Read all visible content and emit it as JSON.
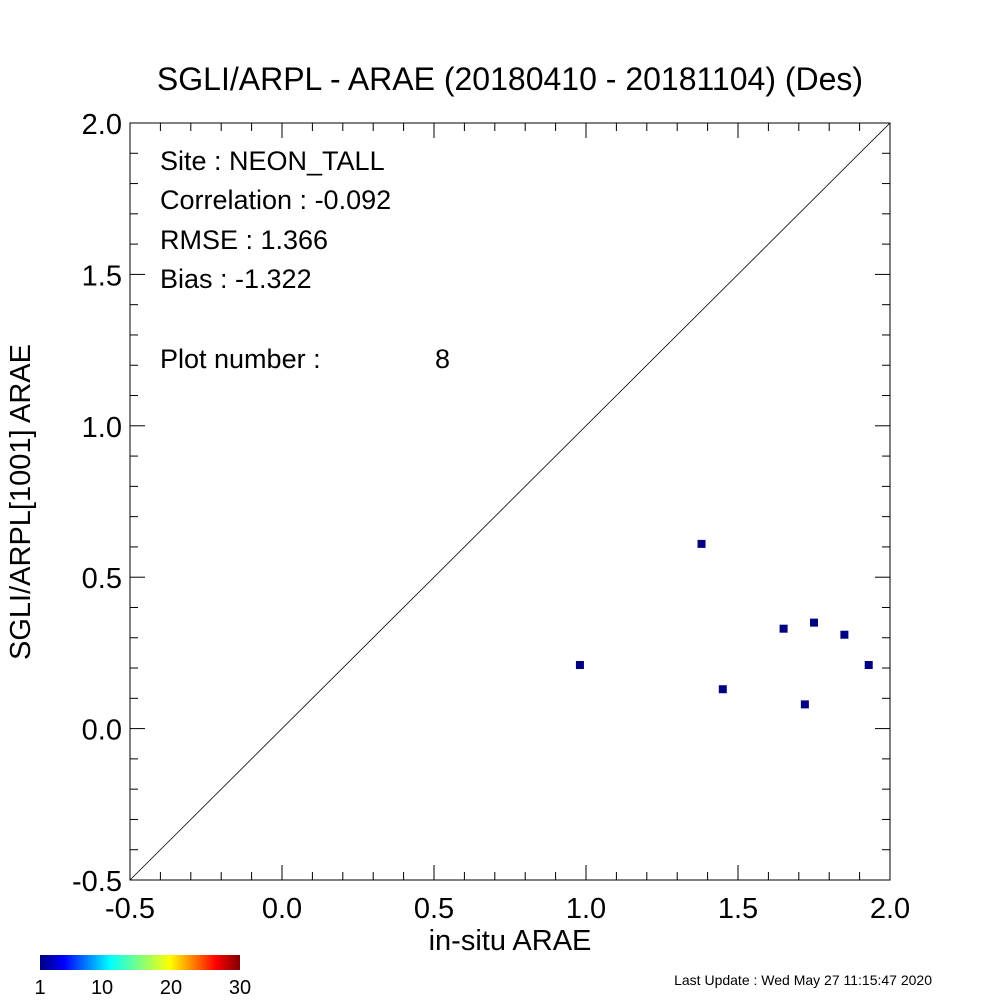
{
  "chart_data": {
    "type": "scatter",
    "title": "SGLI/ARPL - ARAE (20180410 - 20181104) (Des)",
    "xlabel": "in-situ ARAE",
    "ylabel": "SGLI/ARPL[1001]    ARAE",
    "xlim": [
      -0.5,
      2.0
    ],
    "ylim": [
      -0.5,
      2.0
    ],
    "x_ticks": [
      "-0.5",
      "0.0",
      "0.5",
      "1.0",
      "1.5",
      "2.0"
    ],
    "y_ticks": [
      "-0.5",
      "0.0",
      "0.5",
      "1.0",
      "1.5",
      "2.0"
    ],
    "one_to_one_line": true,
    "grid": false,
    "point_color": "#000080",
    "points": [
      {
        "x": 0.98,
        "y": 0.21
      },
      {
        "x": 1.38,
        "y": 0.61
      },
      {
        "x": 1.45,
        "y": 0.13
      },
      {
        "x": 1.65,
        "y": 0.33
      },
      {
        "x": 1.72,
        "y": 0.08
      },
      {
        "x": 1.75,
        "y": 0.35
      },
      {
        "x": 1.85,
        "y": 0.31
      },
      {
        "x": 1.93,
        "y": 0.21
      }
    ],
    "annotations": {
      "site": "Site : NEON_TALL",
      "correlation": "Correlation :   -0.092",
      "rmse": "RMSE :    1.366",
      "bias": "Bias :   -1.322",
      "plot_number_label": "Plot number :",
      "plot_number_value": "8"
    }
  },
  "colorbar": {
    "ticks": [
      "1",
      "10",
      "20",
      "30"
    ],
    "min": 1,
    "max": 30
  },
  "footer": {
    "last_update": "Last Update : Wed May 27 11:15:47 2020"
  }
}
